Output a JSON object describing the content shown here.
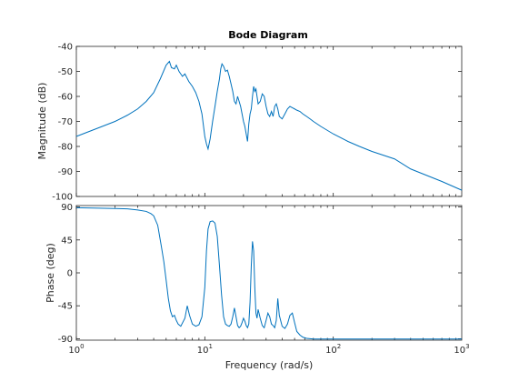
{
  "chart_data": {
    "type": "line",
    "title": "Bode Diagram",
    "xlabel": "Frequency  (rad/s)",
    "xscale": "log",
    "xlim": [
      1,
      1000
    ],
    "x_ticks": [
      1,
      10,
      100,
      1000
    ],
    "x_tick_labels": [
      {
        "base": "10",
        "exp": "0"
      },
      {
        "base": "10",
        "exp": "1"
      },
      {
        "base": "10",
        "exp": "2"
      },
      {
        "base": "10",
        "exp": "3"
      }
    ],
    "grid": false,
    "legend": "none",
    "line_color": "#0072BD",
    "subplots": [
      {
        "name": "magnitude",
        "ylabel": "Magnitude (dB)",
        "ylim": [
          -100,
          -40
        ],
        "y_ticks": [
          -100,
          -90,
          -80,
          -70,
          -60,
          -50,
          -40
        ],
        "y_tick_labels": [
          "-100",
          "-90",
          "-80",
          "-70",
          "-60",
          "-50",
          "-40"
        ],
        "x": [
          1,
          1.5,
          2,
          2.5,
          3,
          3.5,
          4,
          4.5,
          5,
          5.3,
          5.5,
          5.8,
          6,
          6.3,
          6.7,
          7,
          7.5,
          8,
          8.5,
          9,
          9.5,
          10,
          10.3,
          10.6,
          11,
          11.5,
          12,
          12.5,
          13,
          13.3,
          13.6,
          14,
          14.5,
          15,
          15.5,
          16,
          16.5,
          17,
          17.5,
          18,
          18.5,
          19,
          19.5,
          20,
          20.5,
          21,
          21.5,
          22,
          22.5,
          23,
          23.5,
          24,
          24.5,
          25,
          25.5,
          26,
          27,
          28,
          29,
          30,
          31,
          32,
          33,
          34,
          35,
          36,
          37,
          38,
          40,
          42,
          44,
          46,
          48,
          50,
          52,
          55,
          58,
          62,
          66,
          70,
          80,
          100,
          130,
          160,
          200,
          300,
          400,
          500,
          700,
          1000
        ],
        "y": [
          -76,
          -72.5,
          -70,
          -67.5,
          -65,
          -62,
          -58.5,
          -53,
          -47.5,
          -46,
          -48.5,
          -49,
          -47.5,
          -50,
          -52,
          -51,
          -54,
          -56,
          -58.5,
          -62,
          -67,
          -76,
          -79,
          -81,
          -77,
          -70,
          -64,
          -58,
          -53,
          -49,
          -47,
          -48,
          -50,
          -49.5,
          -52,
          -55,
          -58,
          -62,
          -63,
          -60,
          -62,
          -64,
          -67,
          -70,
          -72,
          -75,
          -78,
          -71,
          -67,
          -65,
          -60,
          -56,
          -58,
          -57,
          -60,
          -63,
          -62,
          -59,
          -60,
          -64,
          -67,
          -68,
          -66,
          -68,
          -64,
          -63,
          -65,
          -68,
          -69,
          -67,
          -65,
          -64,
          -64.5,
          -65,
          -65.5,
          -66,
          -67,
          -68,
          -69,
          -70,
          -72,
          -75,
          -78,
          -80,
          -82,
          -85,
          -89,
          -91,
          -94,
          -97.5
        ]
      },
      {
        "name": "phase",
        "ylabel": "Phase (deg)",
        "ylim": [
          -92,
          92
        ],
        "y_ticks": [
          -90,
          -45,
          0,
          45,
          90
        ],
        "y_tick_labels": [
          "-90",
          "-45",
          "0",
          "45",
          "90"
        ],
        "x": [
          1,
          1.5,
          2,
          2.5,
          3,
          3.5,
          3.8,
          4,
          4.3,
          4.6,
          4.8,
          5,
          5.2,
          5.4,
          5.6,
          5.8,
          6,
          6.2,
          6.5,
          7,
          7.3,
          7.6,
          8,
          8.5,
          9,
          9.5,
          10,
          10.3,
          10.6,
          11,
          11.5,
          12,
          12.5,
          13,
          13.5,
          14,
          14.5,
          15,
          15.5,
          16,
          16.5,
          17,
          17.5,
          18,
          18.5,
          19,
          19.5,
          20,
          20.5,
          21,
          21.5,
          22,
          22.5,
          23,
          23.5,
          24,
          24.5,
          25,
          25.5,
          26,
          27,
          28,
          29,
          30,
          31,
          32,
          33,
          34,
          35,
          36,
          37,
          38,
          40,
          42,
          44,
          46,
          48,
          50,
          52,
          55,
          58,
          62,
          66,
          70,
          80,
          100,
          150,
          200,
          300,
          500,
          1000
        ],
        "y": [
          89,
          88.5,
          88,
          87.5,
          86,
          84,
          81,
          78,
          65,
          35,
          15,
          -10,
          -35,
          -52,
          -60,
          -58,
          -65,
          -70,
          -73,
          -62,
          -45,
          -58,
          -70,
          -73,
          -71,
          -60,
          -20,
          30,
          60,
          70,
          71,
          68,
          50,
          10,
          -30,
          -60,
          -70,
          -72,
          -73,
          -70,
          -60,
          -48,
          -60,
          -72,
          -75,
          -73,
          -68,
          -62,
          -66,
          -72,
          -75,
          -70,
          -40,
          10,
          43,
          30,
          -20,
          -55,
          -62,
          -50,
          -62,
          -72,
          -75,
          -65,
          -55,
          -60,
          -70,
          -72,
          -75,
          -65,
          -35,
          -58,
          -73,
          -76,
          -70,
          -58,
          -55,
          -68,
          -80,
          -85,
          -88,
          -89.5,
          -90,
          -90.5,
          -90.5,
          -90.5,
          -90.5,
          -90.5,
          -90.5,
          -90.5,
          -90.5
        ]
      }
    ]
  }
}
